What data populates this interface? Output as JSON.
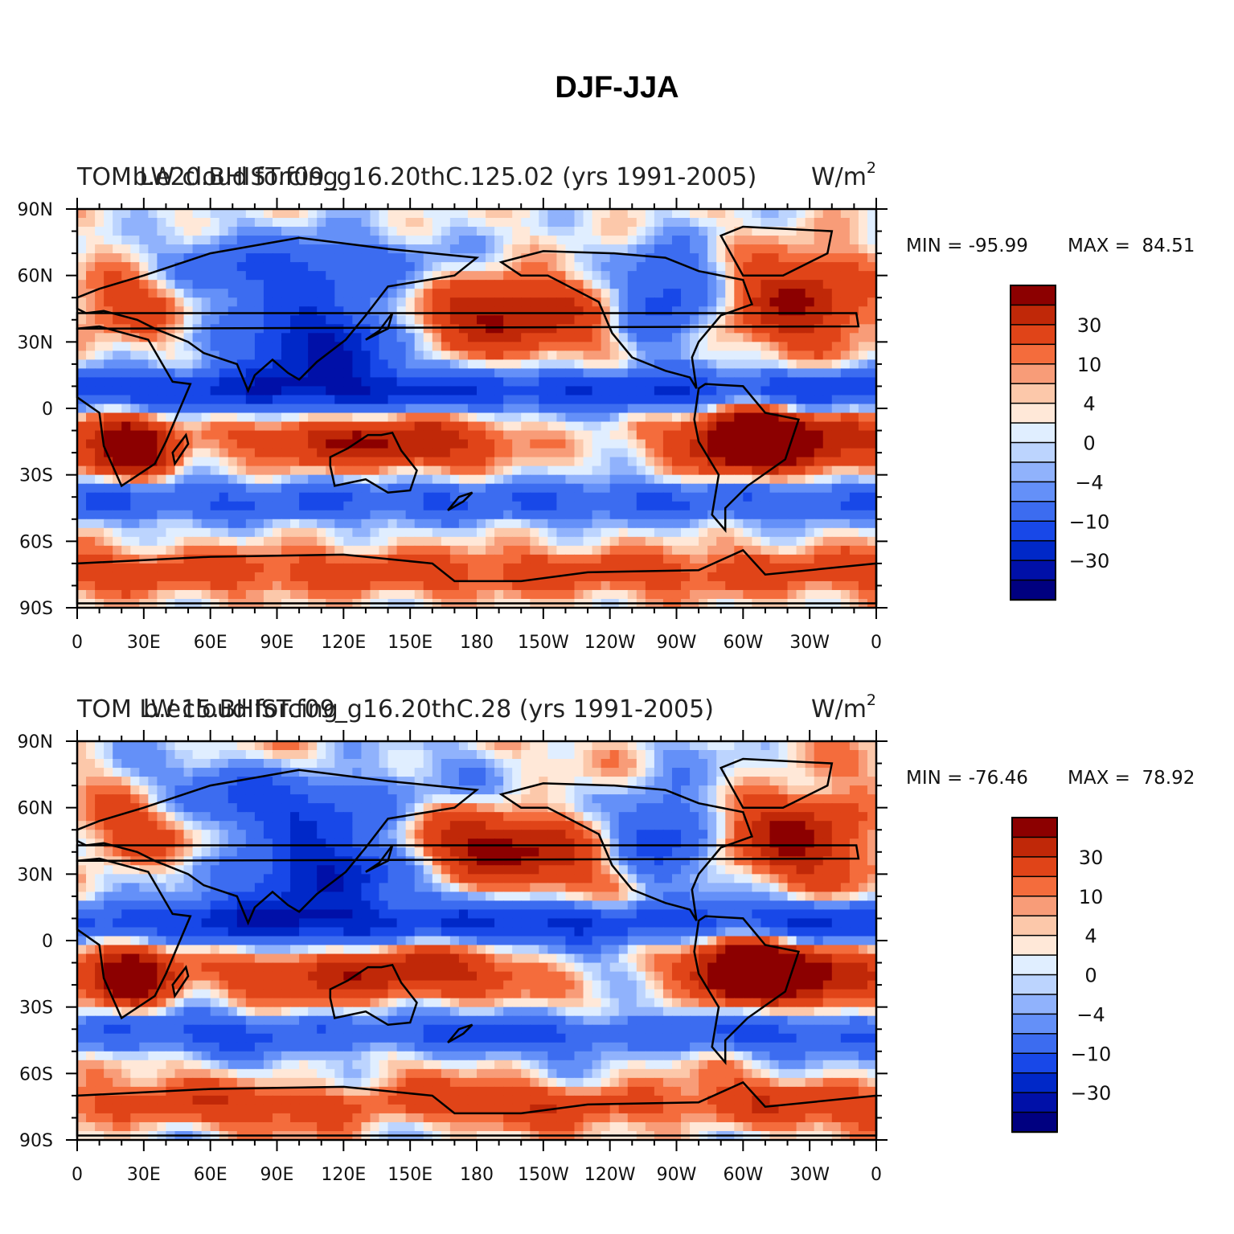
{
  "title": "DJF-JJA",
  "colors": {
    "levels": [
      "#000080",
      "#0010a8",
      "#0028c8",
      "#1848e8",
      "#3c6cf0",
      "#6490f8",
      "#90b2fc",
      "#bcd4fe",
      "#e0eeff",
      "#ffe8d8",
      "#fcc8aa",
      "#f89c78",
      "#f46c3c",
      "#e04418",
      "#c02808",
      "#8c0000"
    ]
  },
  "chart_data": [
    {
      "type": "heatmap",
      "left_title": "TOM LW cloud forcing",
      "center_title": "b.e20.BHIST.f09_g16.20thC.125.02 (yrs 1991-2005)",
      "units": "W/m",
      "units_sup": "2",
      "min_label": "MIN = -95.99",
      "max_label": "MAX =  84.51",
      "min": -95.99,
      "max": 84.51,
      "colorbar_labels": [
        "30",
        "10",
        "4",
        "0",
        "−4",
        "−10",
        "−30"
      ],
      "x_ticks": [
        "0",
        "30E",
        "60E",
        "90E",
        "120E",
        "150E",
        "180",
        "150W",
        "120W",
        "90W",
        "60W",
        "30W",
        "0"
      ],
      "y_ticks": [
        "90N",
        "60N",
        "30N",
        "0",
        "30S",
        "60S",
        "90S"
      ],
      "xlim": [
        0,
        360
      ],
      "ylim": [
        -90,
        90
      ]
    },
    {
      "type": "heatmap",
      "left_title": "TOM LW cloud forcing",
      "center_title": "b.e15.BHIST.f09_g16.20thC.28 (yrs 1991-2005)",
      "units": "W/m",
      "units_sup": "2",
      "min_label": "MIN = -76.46",
      "max_label": "MAX =  78.92",
      "min": -76.46,
      "max": 78.92,
      "colorbar_labels": [
        "30",
        "10",
        "4",
        "0",
        "−4",
        "−10",
        "−30"
      ],
      "x_ticks": [
        "0",
        "30E",
        "60E",
        "90E",
        "120E",
        "150E",
        "180",
        "150W",
        "120W",
        "90W",
        "60W",
        "30W",
        "0"
      ],
      "y_ticks": [
        "90N",
        "60N",
        "30N",
        "0",
        "30S",
        "60S",
        "90S"
      ],
      "xlim": [
        0,
        360
      ],
      "ylim": [
        -90,
        90
      ]
    }
  ]
}
